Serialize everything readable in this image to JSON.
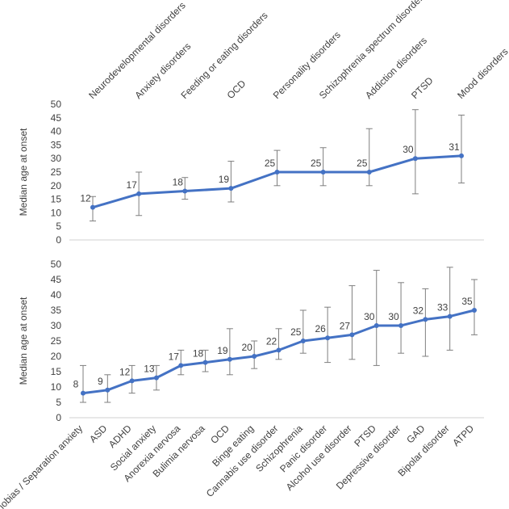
{
  "colors": {
    "line": "#4472C4",
    "error_bar": "#7f7f7f",
    "axis_line": "#d0d0d0",
    "text": "#404040"
  },
  "chart_data": [
    {
      "type": "line",
      "ylabel": "Median age at onset",
      "ylim": [
        0,
        50
      ],
      "yticks": [
        0,
        5,
        10,
        15,
        20,
        25,
        30,
        35,
        40,
        45,
        50
      ],
      "grid": false,
      "category_label_position": "top-rotated",
      "categories": [
        "Neurodevelopmental disorders",
        "Anxiety disorders",
        "Feeding or eating disorders",
        "OCD",
        "Personality disorders",
        "Schizophrenia spectrum disorders",
        "Addiction disorders",
        "PTSD",
        "Mood disorders"
      ],
      "values": [
        12,
        17,
        18,
        19,
        25,
        25,
        25,
        30,
        31
      ],
      "data_labels": [
        "12",
        "17",
        "18",
        "19",
        "25",
        "25",
        "25",
        "30",
        "31"
      ],
      "error_low": [
        7,
        9,
        15,
        14,
        20,
        20,
        20,
        17,
        21
      ],
      "error_high": [
        16,
        25,
        23,
        29,
        33,
        34,
        41,
        48,
        46
      ]
    },
    {
      "type": "line",
      "ylabel": "Median age at onset",
      "ylim": [
        0,
        50
      ],
      "yticks": [
        0,
        5,
        10,
        15,
        20,
        25,
        30,
        35,
        40,
        45,
        50
      ],
      "grid": false,
      "category_label_position": "bottom-rotated",
      "categories": [
        "Phobias / Separation anxiety",
        "ASD",
        "ADHD",
        "Social anxiety",
        "Anorexia nervosa",
        "Bulimia nervosa",
        "OCD",
        "Binge eating",
        "Cannabis use disorder",
        "Schizophrenia",
        "Panic disorder",
        "Alcohol use disorder",
        "PTSD",
        "Depressive disorder",
        "GAD",
        "Bipolar disorder",
        "ATPD"
      ],
      "values": [
        8,
        9,
        12,
        13,
        17,
        18,
        19,
        20,
        22,
        25,
        26,
        27,
        30,
        30,
        32,
        33,
        35
      ],
      "data_labels": [
        "8",
        "9",
        "12",
        "13",
        "17",
        "18",
        "19",
        "20",
        "22",
        "25",
        "26",
        "27",
        "30",
        "30",
        "32",
        "33",
        "35"
      ],
      "error_low": [
        5,
        5,
        8,
        9,
        14,
        15,
        14,
        16,
        19,
        21,
        18,
        19,
        17,
        21,
        20,
        22,
        27
      ],
      "error_high": [
        17,
        14,
        17,
        17,
        22,
        22,
        29,
        25,
        29,
        35,
        36,
        43,
        48,
        44,
        42,
        49,
        45
      ]
    }
  ]
}
